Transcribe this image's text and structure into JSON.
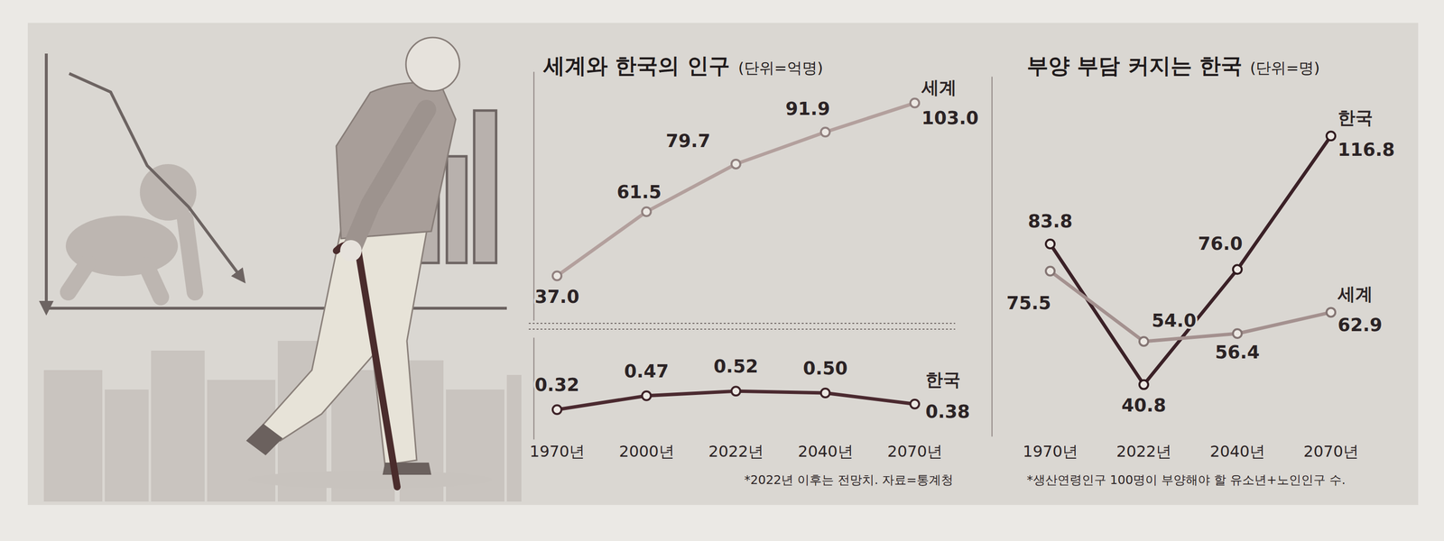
{
  "chart_data": [
    {
      "type": "line",
      "title": "세계와 한국의 인구",
      "subtitle": "(단위=억명)",
      "note": "*2022년 이후는 전망치. 자료=통계청",
      "categories": [
        "1970년",
        "2000년",
        "2022년",
        "2040년",
        "2070년"
      ],
      "series": [
        {
          "name": "세계",
          "color": "#b3a09d",
          "marker": "circle",
          "line_style": "solid",
          "values": [
            37.0,
            61.5,
            79.7,
            91.9,
            103.0
          ],
          "value_labels": [
            "37.0",
            "61.5",
            "79.7",
            "91.9",
            "103.0"
          ]
        },
        {
          "name": "한국",
          "color": "#4b2a30",
          "marker": "circle",
          "line_style": "solid",
          "axis": "y2",
          "values": [
            0.32,
            0.47,
            0.52,
            0.5,
            0.38
          ],
          "value_labels": [
            "0.32",
            "0.47",
            "0.52",
            "0.50",
            "0.38"
          ]
        }
      ],
      "ylim": [
        20,
        115
      ],
      "yticks": [],
      "y2lim": [
        0,
        1.1
      ],
      "y2ticks": [],
      "grid": false,
      "data_labels": true,
      "tick_labels": "x"
    },
    {
      "type": "line",
      "title": "부양 부담 커지는 한국",
      "subtitle": "(단위=명)",
      "note": "*생산연령인구 100명이 부양해야 할 유소년+노인인구 수.",
      "categories": [
        "1970년",
        "2022년",
        "2040년",
        "2070년"
      ],
      "series": [
        {
          "name": "한국",
          "color": "#3b2127",
          "marker": "circle",
          "line_style": "solid",
          "values": [
            83.8,
            40.8,
            76.0,
            116.8
          ],
          "value_labels": [
            "83.8",
            "40.8",
            "76.0",
            "116.8"
          ]
        },
        {
          "name": "세계",
          "color": "#a4918f",
          "marker": "circle",
          "line_style": "solid",
          "values": [
            75.5,
            54.0,
            56.4,
            62.9
          ],
          "value_labels": [
            "75.5",
            "54.0",
            "56.4",
            "62.9"
          ]
        }
      ],
      "ylim": [
        25,
        135
      ],
      "yticks": [],
      "grid": false,
      "data_labels": true,
      "tick_labels": "x"
    }
  ]
}
